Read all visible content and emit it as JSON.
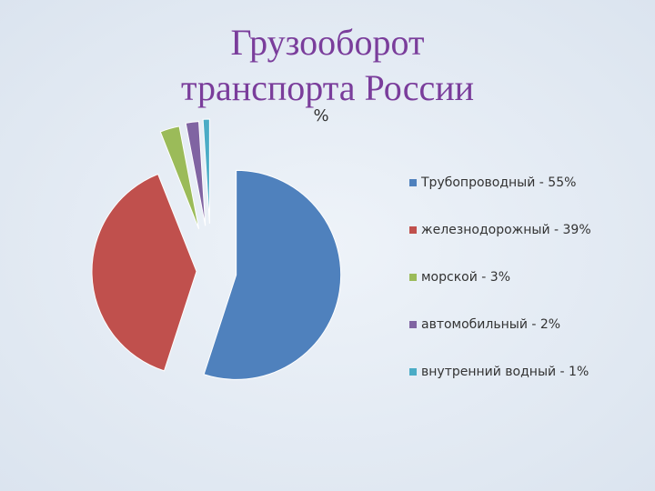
{
  "chart_data": {
    "type": "pie",
    "title": "Грузооборот транспорта России",
    "subtitle": "%",
    "categories": [
      "Трубопроводный - 55%",
      "железнодорожный - 39%",
      "морской - 3%",
      "автомобильный - 2%",
      "внутренний водный - 1%"
    ],
    "values": [
      55,
      39,
      3,
      2,
      1
    ],
    "colors": [
      "#4f81bd",
      "#c0504d",
      "#9bbb59",
      "#8064a2",
      "#4bacc6"
    ],
    "legend": "right"
  }
}
